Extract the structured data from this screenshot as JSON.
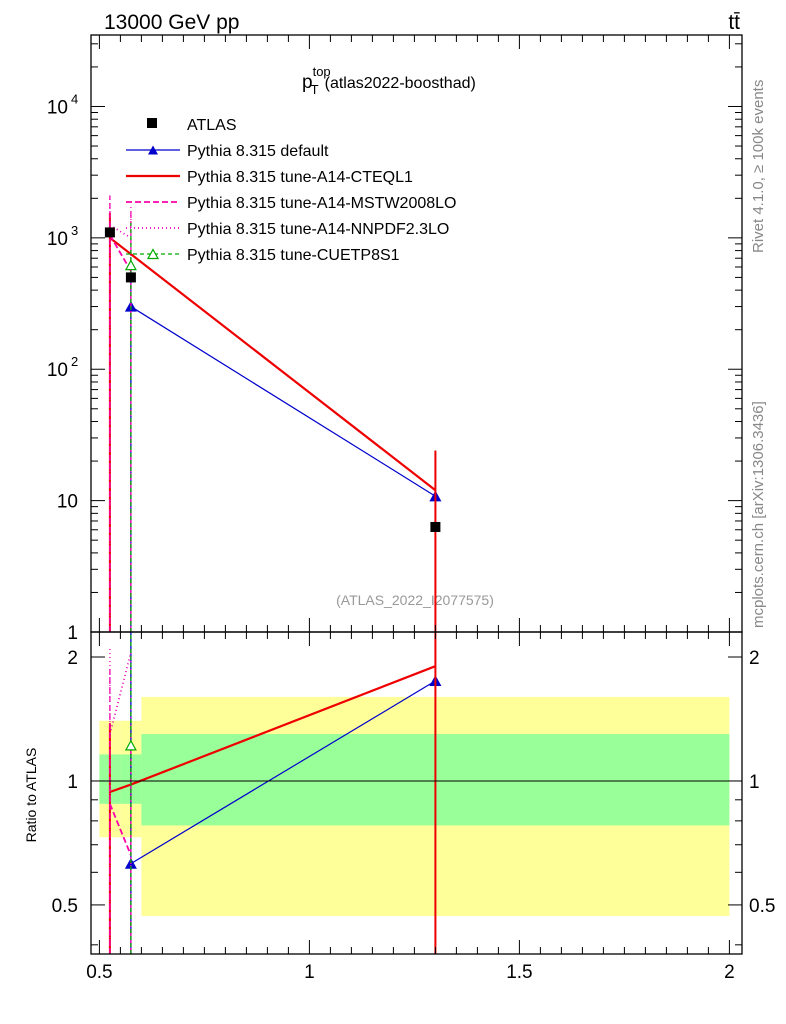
{
  "header": {
    "energy_label": "13000 GeV pp",
    "process_label": "tt̄",
    "side_top": "Rivet 4.1.0, ≥ 100k events",
    "side_bottom": "mcplots.cern.ch [arXiv:1306.3436]"
  },
  "chart_data": {
    "type": "line",
    "title_main": "p",
    "title_sup": "top",
    "title_sub": "T",
    "title_note": "(atlas2022-boosthad)",
    "watermark": "(ATLAS_2022_I2077575)",
    "xlabel": "",
    "ylabel_ratio": "Ratio to ATLAS",
    "xlim": [
      0.48,
      2.03
    ],
    "ylim_main": [
      1,
      35000
    ],
    "ylim_ratio": [
      0.38,
      2.3
    ],
    "x_ticks": [
      0.5,
      1,
      1.5,
      2
    ],
    "x_tick_labels": [
      "0.5",
      "1",
      "1.5",
      "2"
    ],
    "main_tick_labels": [
      {
        "value": 10000,
        "base": "10",
        "exp": "4"
      },
      {
        "value": 1000,
        "base": "10",
        "exp": "3"
      },
      {
        "value": 100,
        "base": "10",
        "exp": "2"
      },
      {
        "value": 10,
        "base": "10",
        "exp": ""
      },
      {
        "value": 1,
        "base": "1",
        "exp": ""
      }
    ],
    "ratio_tick_labels": [
      {
        "value": 2,
        "label": "2"
      },
      {
        "value": 1,
        "label": "1"
      },
      {
        "value": 0.5,
        "label": "0.5"
      }
    ],
    "data": {
      "name": "ATLAS",
      "x": [
        0.525,
        0.575,
        1.3
      ],
      "y": [
        1100,
        500,
        6.3
      ],
      "bands": [
        {
          "x0": 0.5,
          "x1": 0.55,
          "inner": [
            0.88,
            1.16
          ],
          "outer": [
            0.73,
            1.4
          ]
        },
        {
          "x0": 0.55,
          "x1": 0.6,
          "inner": [
            0.88,
            1.16
          ],
          "outer": [
            0.73,
            1.4
          ]
        },
        {
          "x0": 0.6,
          "x1": 2.0,
          "inner": [
            0.78,
            1.3
          ],
          "outer": [
            0.47,
            1.6
          ]
        }
      ]
    },
    "series": [
      {
        "name": "Pythia 8.315 default",
        "color": "#0000cc",
        "dash": "",
        "width": 1.2,
        "marker": "triangle",
        "x": [
          0.575,
          1.3
        ],
        "values": [
          300,
          10.8
        ],
        "ratio_x": [
          0.575,
          1.3
        ],
        "ratio": [
          0.63,
          1.75
        ],
        "err_main": [
          [
            0.575,
            1,
            620
          ],
          [
            1.3,
            1,
            24
          ]
        ],
        "err_ratio": [
          [
            0.575,
            0.38,
            2.3
          ],
          [
            1.3,
            0.38,
            2.3
          ]
        ]
      },
      {
        "name": "Pythia 8.315 tune-A14-CTEQL1",
        "color": "#ee0000",
        "dash": "",
        "width": 2.2,
        "marker": "none",
        "x": [
          0.525,
          1.3
        ],
        "values": [
          1000,
          12
        ],
        "ratio_x": [
          0.525,
          0.575,
          1.3
        ],
        "ratio": [
          0.94,
          0.98,
          1.9
        ],
        "err_main": [
          [
            0.525,
            1,
            1550
          ],
          [
            1.3,
            1,
            24
          ]
        ],
        "err_ratio": [
          [
            0.525,
            0.38,
            1.38
          ],
          [
            1.3,
            0.38,
            2.3
          ]
        ]
      },
      {
        "name": "Pythia 8.315 tune-A14-MSTW2008LO",
        "color": "#ff00aa",
        "dash": "6,3",
        "width": 1.8,
        "marker": "none",
        "x": [
          0.525,
          0.575
        ],
        "values": [
          1050,
          560
        ],
        "ratio_x": [
          0.525,
          0.575
        ],
        "ratio": [
          0.88,
          0.66
        ],
        "err_main": [
          [
            0.525,
            1,
            2100
          ],
          [
            0.575,
            1,
            1600
          ]
        ],
        "err_ratio": [
          [
            0.525,
            0.38,
            1.9
          ],
          [
            0.575,
            0.38,
            1.3
          ]
        ]
      },
      {
        "name": "Pythia 8.315 tune-A14-NNPDF2.3LO",
        "color": "#ee00bb",
        "dash": "1,3",
        "width": 1.8,
        "marker": "none",
        "x": [
          0.525,
          0.575
        ],
        "values": [
          1250,
          1000
        ],
        "ratio_x": [
          0.525,
          0.575
        ],
        "ratio": [
          1.3,
          2.05
        ],
        "err_main": [
          [
            0.525,
            1,
            2100
          ],
          [
            0.575,
            1,
            1800
          ]
        ],
        "err_ratio": [
          [
            0.525,
            0.38,
            2.1
          ],
          [
            0.575,
            0.38,
            2.1
          ]
        ]
      },
      {
        "name": "Pythia 8.315 tune-CUETP8S1",
        "color": "#00aa00",
        "dash": "4,3",
        "width": 1.2,
        "marker": "open-triangle",
        "x": [
          0.575
        ],
        "values": [
          620
        ],
        "ratio_x": [
          0.575
        ],
        "ratio": [
          1.22
        ],
        "err_main": [
          [
            0.575,
            1,
            1300
          ]
        ],
        "err_ratio": [
          [
            0.575,
            0.38,
            2.3
          ]
        ]
      }
    ],
    "legend_position": "top-left"
  }
}
